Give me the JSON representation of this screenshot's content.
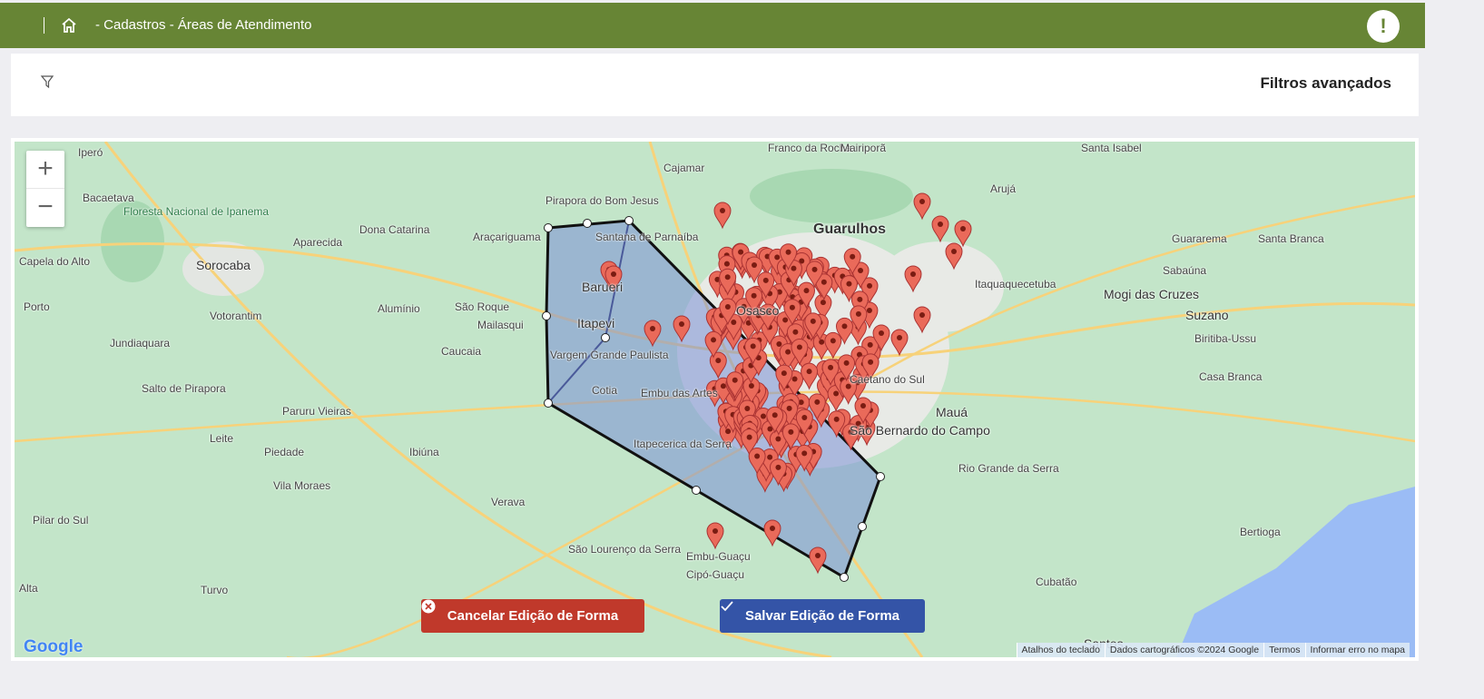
{
  "header": {
    "breadcrumb": "- Cadastros - Áreas de Atendimento",
    "alert_icon": "!",
    "accent": "#678535"
  },
  "filters": {
    "title": "Filtros avançados"
  },
  "map": {
    "zoom_in": "+",
    "zoom_out": "−",
    "labels": [
      "Guarulhos",
      "Sorocaba",
      "Osasco",
      "Barueri",
      "Itapevi",
      "Suzano",
      "Mogi das Cruzes",
      "Mauá",
      "São Bernardo do Campo",
      "Santos",
      "Cotia",
      "Embu das Artes",
      "Itapecerica da Serra",
      "Embu-Guaçu",
      "Cipó-Guaçu",
      "Floresta Nacional de Ipanema",
      "Cajamar",
      "Franco da Rocha",
      "Mairiporã",
      "Arujá",
      "Santa Isabel",
      "Votorantim",
      "São Roque",
      "Mailasqui",
      "Vargem Grande Paulista",
      "Piedade",
      "Ibiúna",
      "Bertioga",
      "Cubatão",
      "Santana de Parnaíba",
      "Pirapora do Bom Jesus",
      "Araçariguama",
      "Aparecida",
      "Dona Catarina",
      "Alumínio",
      "Caucaia",
      "Paruru Vieiras",
      "Leite",
      "Vila Moraes",
      "Salto de Pirapora",
      "Pilar do Sul",
      "Caetano do Sul",
      "Itaquaquecetuba",
      "Guararema",
      "Santa Branca",
      "Sabaúna",
      "Biritiba-Ussu",
      "Casa Branca",
      "Rio Grande da Serra",
      "Verava",
      "São Lourenço da Serra",
      "Iperó",
      "Bacaetava",
      "Capela do Alto",
      "Porto",
      "Jundiaquara",
      "Alta",
      "Turvo"
    ],
    "buttons": {
      "cancel": "Cancelar Edição de Forma",
      "save": "Salvar Edição de Forma",
      "cancel_color": "#c0392b",
      "save_color": "#3454a7"
    },
    "logo": "Google",
    "attribution": [
      "Atalhos do teclado",
      "Dados cartográficos ©2024 Google",
      "Termos",
      "Informar erro no mapa"
    ],
    "marker_color": "#ea6a5a",
    "polygon_fill": "#7a8fd6"
  }
}
